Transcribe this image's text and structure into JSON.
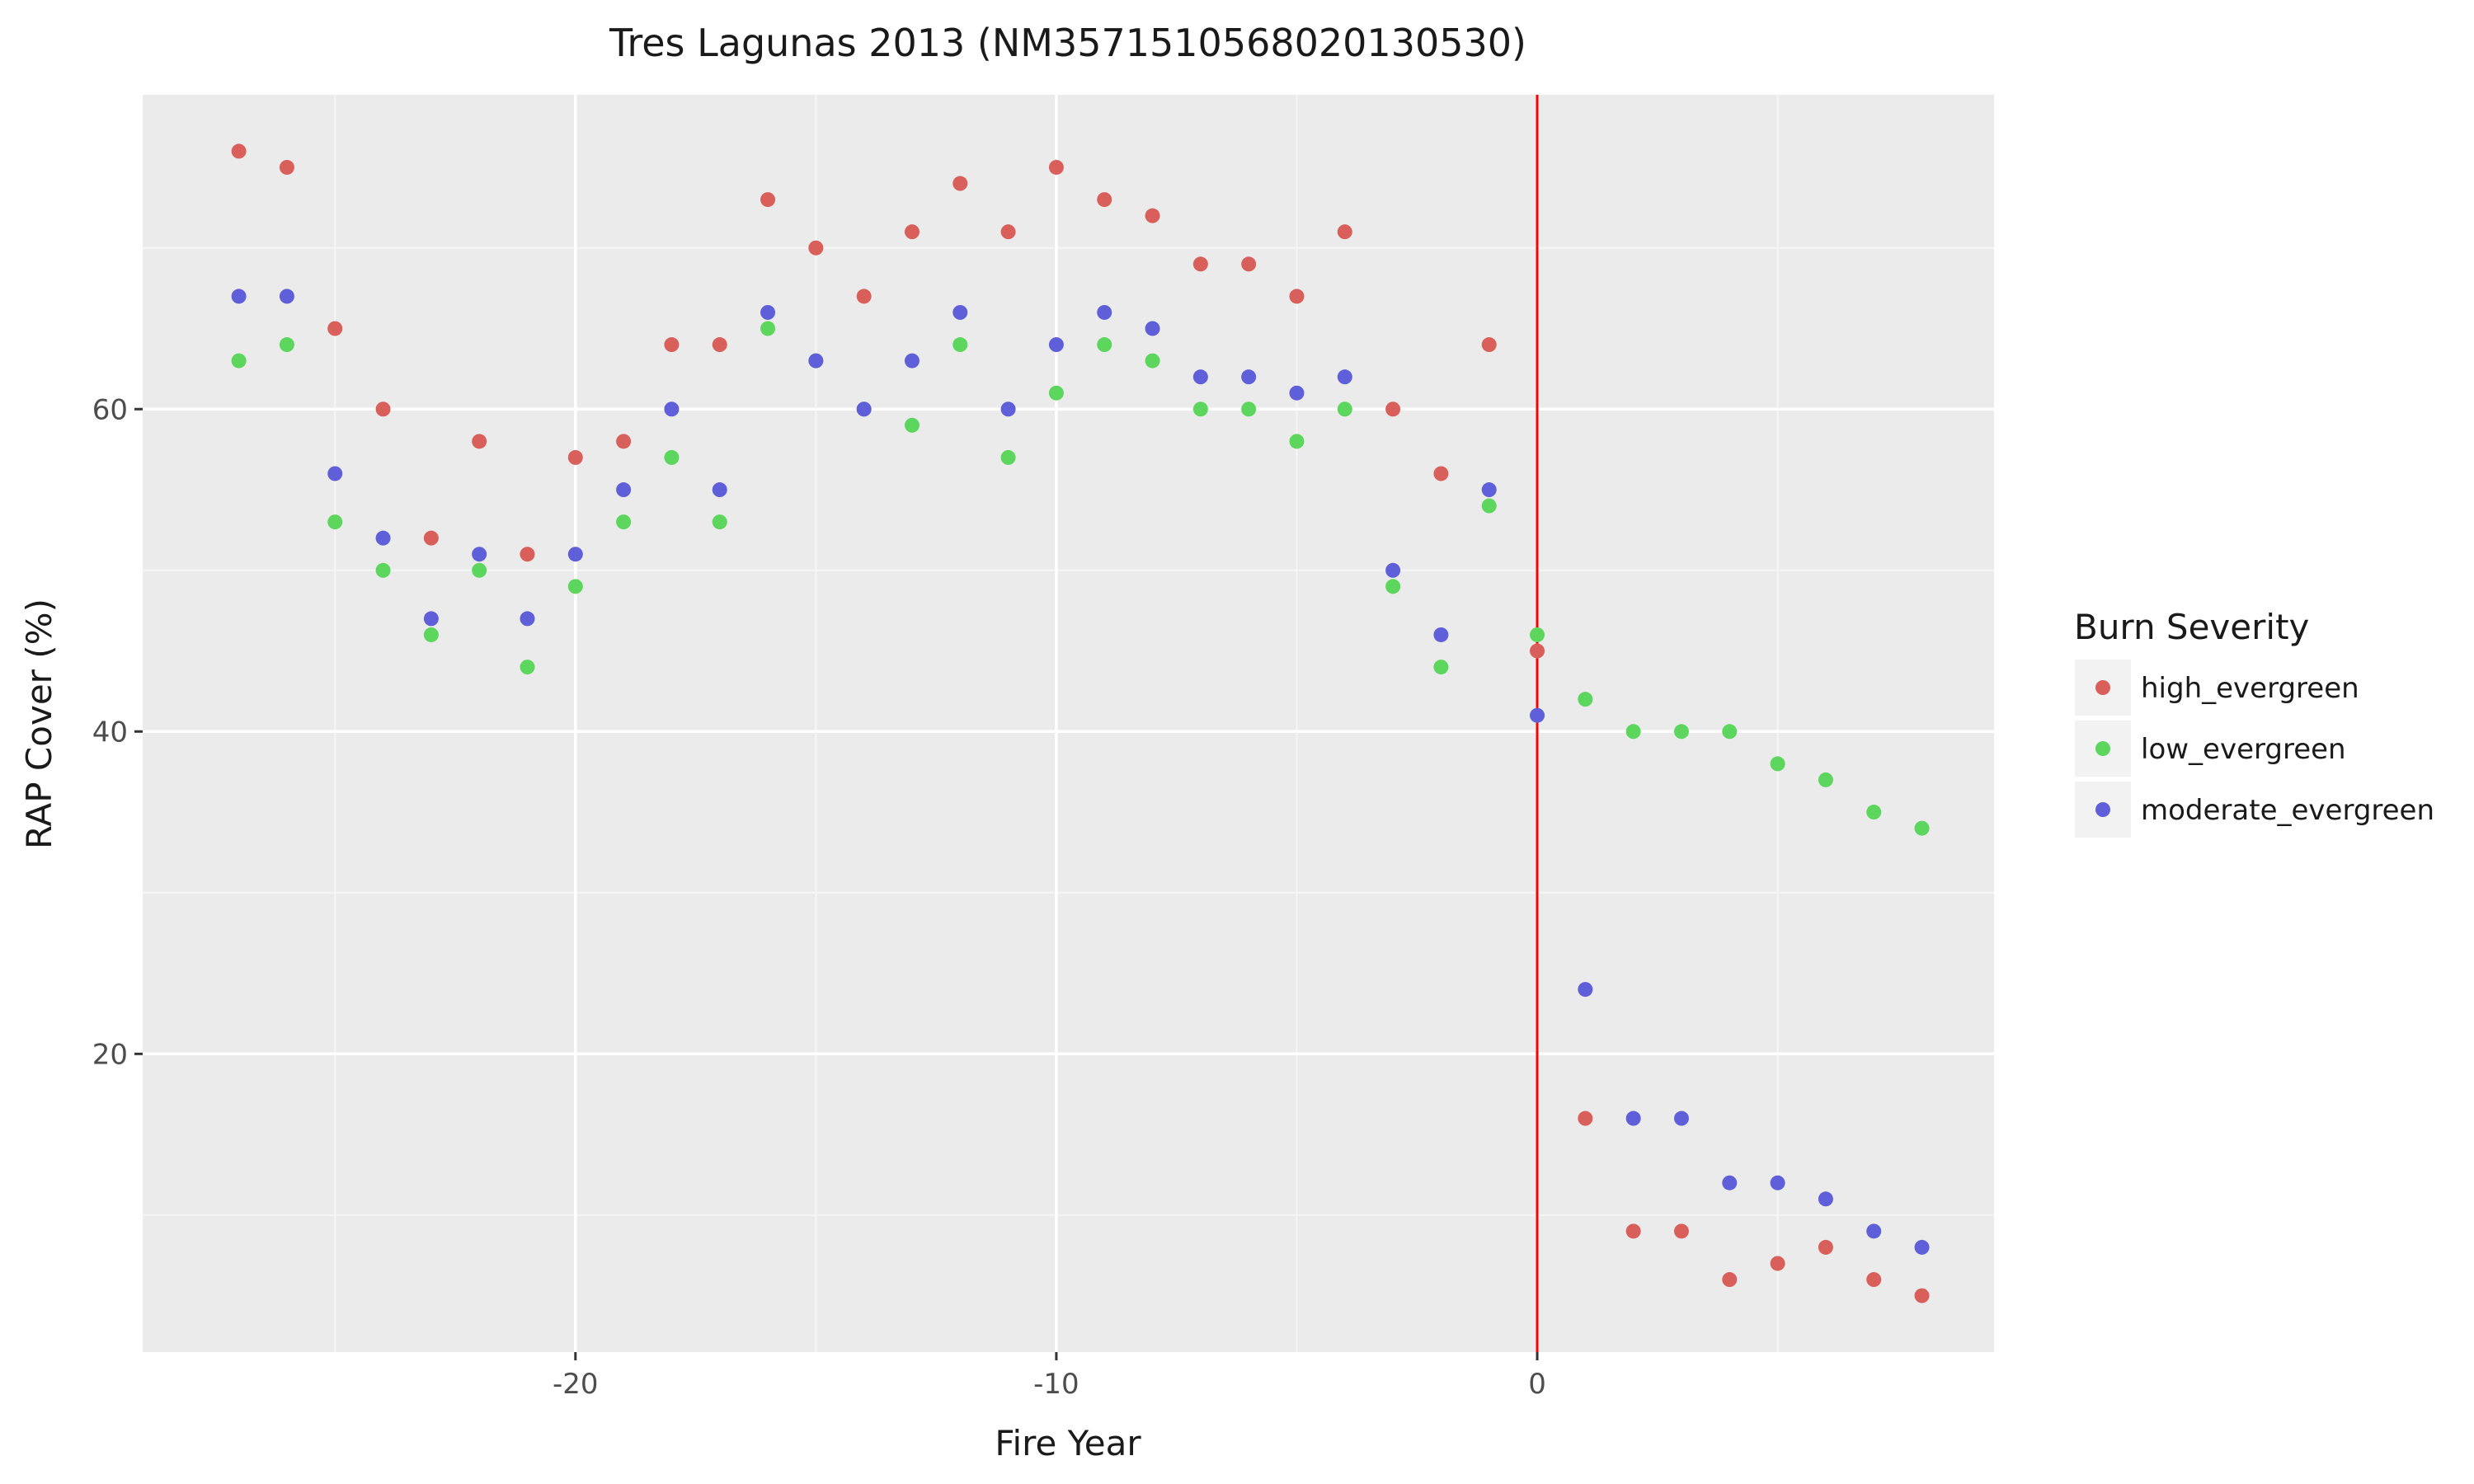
{
  "chart_data": {
    "type": "scatter",
    "title": "Tres Lagunas 2013 (NM3571510568020130530)",
    "xlabel": "Fire Year",
    "ylabel": "RAP Cover (%)",
    "xlim": [
      -29,
      9.5
    ],
    "ylim": [
      1.5,
      79.5
    ],
    "xticks": [
      -20,
      -10,
      0
    ],
    "xtick_labels": [
      "-20",
      "-10",
      "0"
    ],
    "yticks": [
      20,
      40,
      60
    ],
    "ytick_labels": [
      "20",
      "40",
      "60"
    ],
    "grid": true,
    "vline": {
      "x": 0,
      "color": "#ff0000"
    },
    "legend": {
      "title": "Burn Severity",
      "position": "right"
    },
    "colors": {
      "high_evergreen": "#d95f5a",
      "low_evergreen": "#5cd65c",
      "moderate_evergreen": "#5f5fd9"
    },
    "series": [
      {
        "name": "high_evergreen",
        "x": [
          -27,
          -26,
          -25,
          -24,
          -23,
          -22,
          -21,
          -20,
          -19,
          -18,
          -17,
          -16,
          -15,
          -14,
          -13,
          -12,
          -11,
          -10,
          -9,
          -8,
          -7,
          -6,
          -5,
          -4,
          -3,
          -2,
          -1,
          0,
          1,
          2,
          3,
          4,
          5,
          6,
          7,
          8
        ],
        "y": [
          76,
          75,
          65,
          60,
          52,
          58,
          51,
          57,
          58,
          64,
          64,
          73,
          70,
          67,
          71,
          74,
          71,
          75,
          73,
          72,
          69,
          69,
          67,
          71,
          60,
          56,
          64,
          45,
          16,
          9,
          9,
          6,
          7,
          8,
          6,
          5
        ]
      },
      {
        "name": "low_evergreen",
        "x": [
          -27,
          -26,
          -25,
          -24,
          -23,
          -22,
          -21,
          -20,
          -19,
          -18,
          -17,
          -16,
          -15,
          -14,
          -13,
          -12,
          -11,
          -10,
          -9,
          -8,
          -7,
          -6,
          -5,
          -4,
          -3,
          -2,
          -1,
          0,
          1,
          2,
          3,
          4,
          5,
          6,
          7,
          8
        ],
        "y": [
          63,
          64,
          53,
          50,
          46,
          50,
          44,
          49,
          53,
          57,
          53,
          65,
          63,
          60,
          59,
          64,
          57,
          61,
          64,
          63,
          60,
          60,
          58,
          60,
          49,
          44,
          54,
          46,
          42,
          40,
          40,
          40,
          38,
          37,
          35,
          34
        ]
      },
      {
        "name": "moderate_evergreen",
        "x": [
          -27,
          -26,
          -25,
          -24,
          -23,
          -22,
          -21,
          -20,
          -19,
          -18,
          -17,
          -16,
          -15,
          -14,
          -13,
          -12,
          -11,
          -10,
          -9,
          -8,
          -7,
          -6,
          -5,
          -4,
          -3,
          -2,
          -1,
          0,
          1,
          2,
          3,
          4,
          5,
          6,
          7,
          8
        ],
        "y": [
          67,
          67,
          56,
          52,
          47,
          51,
          47,
          51,
          55,
          60,
          55,
          66,
          63,
          60,
          63,
          66,
          60,
          64,
          66,
          65,
          62,
          62,
          61,
          62,
          50,
          46,
          55,
          41,
          24,
          16,
          16,
          12,
          12,
          11,
          9,
          8
        ]
      }
    ]
  }
}
